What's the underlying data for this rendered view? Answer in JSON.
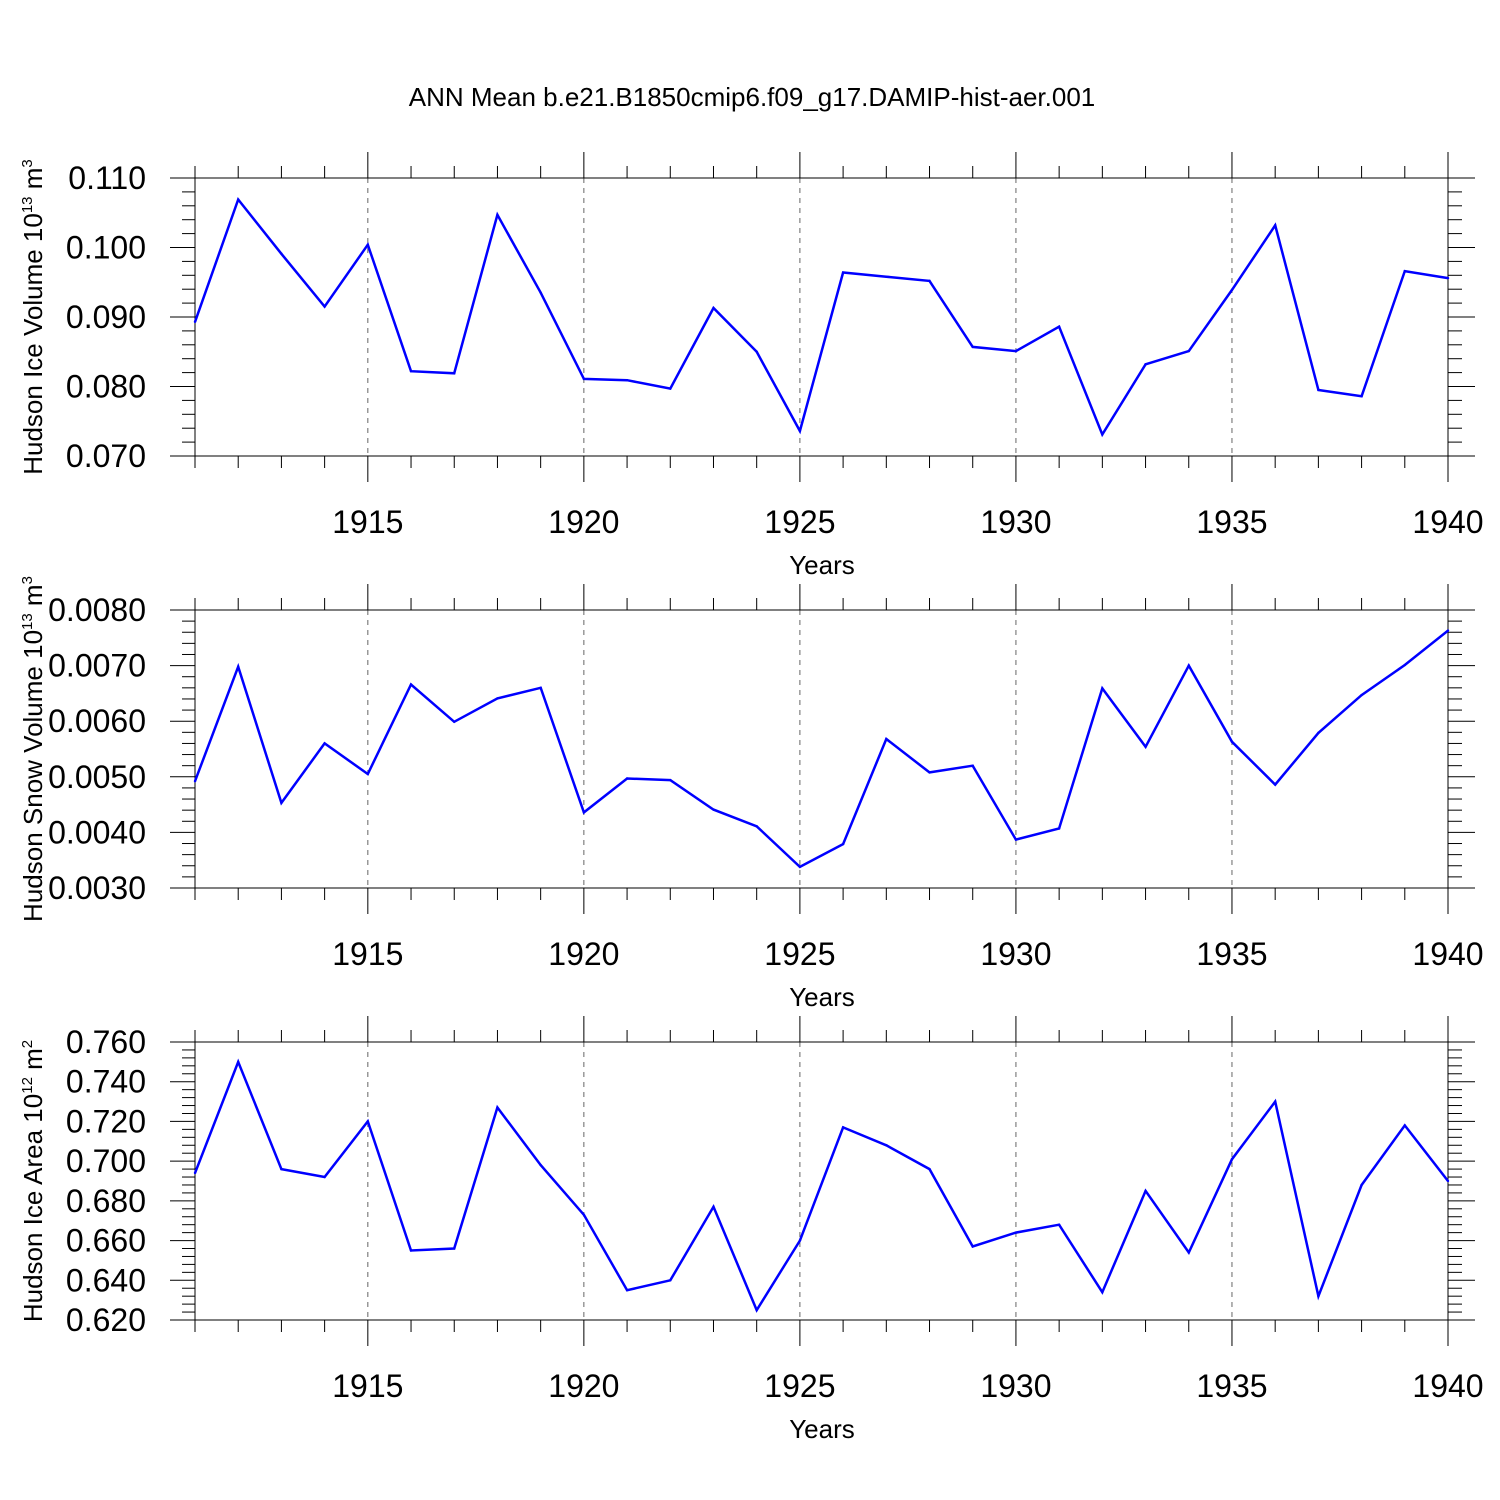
{
  "title": "ANN Mean b.e21.B1850cmip6.f09_g17.DAMIP-hist-aer.001",
  "colors": {
    "line": "#0000ff",
    "axis": "#000000",
    "grid": "#666666"
  },
  "chart_data": [
    {
      "type": "line",
      "ylabel_text": "Hudson Ice Volume 10",
      "ylabel_exp": "13",
      "ylabel_unit": " m",
      "ylabel_unit_exp": "3",
      "xlabel": "Years",
      "xlim": [
        1911,
        1940
      ],
      "ylim": [
        0.07,
        0.11
      ],
      "yticks": [
        "0.070",
        "0.080",
        "0.090",
        "0.100",
        "0.110"
      ],
      "xticks": [
        "1915",
        "1920",
        "1925",
        "1930",
        "1935",
        "1940"
      ],
      "grid": "vertical dashed at major x ticks",
      "series": [
        {
          "x": [
            1911,
            1912,
            1913,
            1914,
            1915,
            1916,
            1917,
            1918,
            1919,
            1920,
            1921,
            1922,
            1923,
            1924,
            1925,
            1926,
            1927,
            1928,
            1929,
            1930,
            1931,
            1932,
            1933,
            1934,
            1935,
            1936,
            1937,
            1938,
            1939,
            1940
          ],
          "values": [
            0.0893,
            0.1069,
            0.0991,
            0.0915,
            0.1004,
            0.0822,
            0.0819,
            0.1047,
            0.0935,
            0.0811,
            0.0809,
            0.0797,
            0.0913,
            0.085,
            0.0736,
            0.0964,
            0.0958,
            0.0952,
            0.0857,
            0.0851,
            0.0886,
            0.0731,
            0.0832,
            0.0851,
            0.0939,
            0.1032,
            0.0795,
            0.0786,
            0.0966,
            0.0956
          ]
        }
      ]
    },
    {
      "type": "line",
      "ylabel_text": "Hudson Snow Volume 10",
      "ylabel_exp": "13",
      "ylabel_unit": " m",
      "ylabel_unit_exp": "3",
      "xlabel": "Years",
      "xlim": [
        1911,
        1940
      ],
      "ylim": [
        0.003,
        0.008
      ],
      "yticks": [
        "0.0030",
        "0.0040",
        "0.0050",
        "0.0060",
        "0.0070",
        "0.0080"
      ],
      "xticks": [
        "1915",
        "1920",
        "1925",
        "1930",
        "1935",
        "1940"
      ],
      "grid": "vertical dashed at major x ticks",
      "series": [
        {
          "x": [
            1911,
            1912,
            1913,
            1914,
            1915,
            1916,
            1917,
            1918,
            1919,
            1920,
            1921,
            1922,
            1923,
            1924,
            1925,
            1926,
            1927,
            1928,
            1929,
            1930,
            1931,
            1932,
            1933,
            1934,
            1935,
            1936,
            1937,
            1938,
            1939,
            1940
          ],
          "values": [
            0.00492,
            0.00698,
            0.00453,
            0.0056,
            0.00505,
            0.00666,
            0.00599,
            0.00641,
            0.0066,
            0.00436,
            0.00497,
            0.00494,
            0.00441,
            0.00411,
            0.00338,
            0.00379,
            0.00568,
            0.00508,
            0.0052,
            0.00387,
            0.00407,
            0.00659,
            0.00554,
            0.007,
            0.00563,
            0.00486,
            0.00579,
            0.00647,
            0.00701,
            0.00763
          ]
        }
      ]
    },
    {
      "type": "line",
      "ylabel_text": "Hudson Ice Area 10",
      "ylabel_exp": "12",
      "ylabel_unit": " m",
      "ylabel_unit_exp": "2",
      "xlabel": "Years",
      "xlim": [
        1911,
        1940
      ],
      "ylim": [
        0.62,
        0.76
      ],
      "yticks": [
        "0.620",
        "0.640",
        "0.660",
        "0.680",
        "0.700",
        "0.720",
        "0.740",
        "0.760"
      ],
      "xticks": [
        "1915",
        "1920",
        "1925",
        "1930",
        "1935",
        "1940"
      ],
      "grid": "vertical dashed at major x ticks",
      "series": [
        {
          "x": [
            1911,
            1912,
            1913,
            1914,
            1915,
            1916,
            1917,
            1918,
            1919,
            1920,
            1921,
            1922,
            1923,
            1924,
            1925,
            1926,
            1927,
            1928,
            1929,
            1930,
            1931,
            1932,
            1933,
            1934,
            1935,
            1936,
            1937,
            1938,
            1939,
            1940
          ],
          "values": [
            0.694,
            0.75,
            0.696,
            0.692,
            0.72,
            0.655,
            0.656,
            0.727,
            0.698,
            0.673,
            0.635,
            0.64,
            0.677,
            0.625,
            0.66,
            0.717,
            0.708,
            0.696,
            0.657,
            0.664,
            0.668,
            0.634,
            0.685,
            0.654,
            0.701,
            0.73,
            0.632,
            0.688,
            0.718,
            0.69
          ]
        }
      ]
    }
  ]
}
